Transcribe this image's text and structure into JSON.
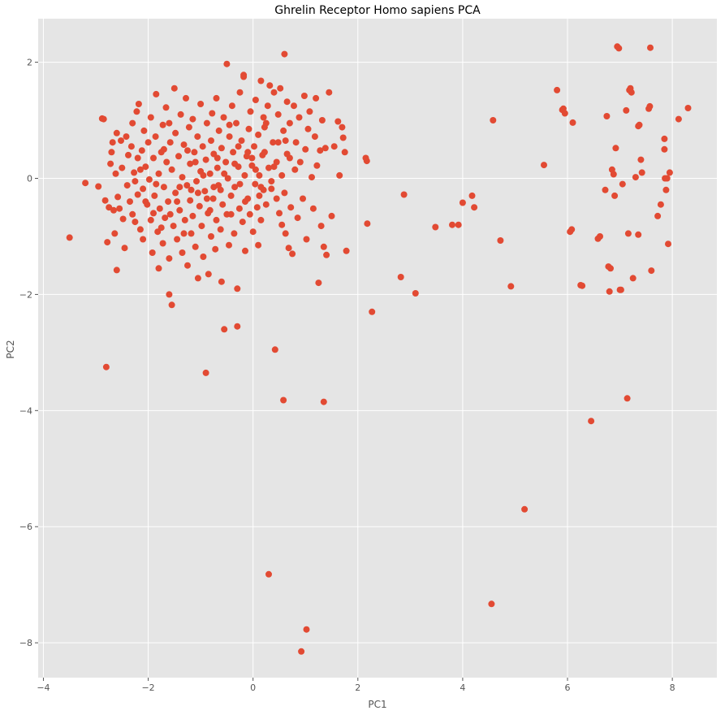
{
  "chart_data": {
    "type": "scatter",
    "title": "Ghrelin Receptor Homo sapiens PCA",
    "xlabel": "PC1",
    "ylabel": "PC2",
    "xlim": [
      -4.1,
      8.85
    ],
    "ylim": [
      -8.6,
      2.75
    ],
    "xticks": [
      -4,
      -2,
      0,
      2,
      4,
      6,
      8
    ],
    "yticks": [
      -8,
      -6,
      -4,
      -2,
      0,
      2
    ],
    "grid": true,
    "legend": "none",
    "colors": {
      "background": "#e5e5e5",
      "grid": "#ffffff",
      "points": "#e24a33"
    },
    "points": [
      [
        -3.5,
        -1.02
      ],
      [
        -3.2,
        -0.08
      ],
      [
        -2.95,
        -0.14
      ],
      [
        -2.88,
        1.03
      ],
      [
        -2.85,
        1.02
      ],
      [
        -2.82,
        -0.38
      ],
      [
        -2.8,
        -3.25
      ],
      [
        -2.78,
        -1.1
      ],
      [
        -2.75,
        -0.5
      ],
      [
        -2.72,
        0.25
      ],
      [
        -2.7,
        0.45
      ],
      [
        -2.66,
        -0.55
      ],
      [
        -2.64,
        -0.95
      ],
      [
        -2.62,
        0.08
      ],
      [
        -2.6,
        0.78
      ],
      [
        -2.6,
        -1.58
      ],
      [
        -2.58,
        -0.32
      ],
      [
        -2.55,
        -0.52
      ],
      [
        -2.52,
        0.65
      ],
      [
        -2.5,
        0.18
      ],
      [
        -2.48,
        -0.7
      ],
      [
        -2.45,
        -1.2
      ],
      [
        -2.42,
        0.72
      ],
      [
        -2.4,
        -0.12
      ],
      [
        -2.38,
        0.4
      ],
      [
        -2.35,
        -0.4
      ],
      [
        -2.32,
        0.55
      ],
      [
        -2.3,
        0.95
      ],
      [
        -2.3,
        -0.62
      ],
      [
        -2.27,
        0.1
      ],
      [
        -2.25,
        -0.75
      ],
      [
        -2.22,
        1.15
      ],
      [
        -2.2,
        -0.28
      ],
      [
        -2.2,
        0.35
      ],
      [
        -2.18,
        1.28
      ],
      [
        -2.15,
        -0.88
      ],
      [
        -2.12,
        0.48
      ],
      [
        -2.1,
        -0.18
      ],
      [
        -2.1,
        -1.05
      ],
      [
        -2.08,
        0.82
      ],
      [
        -2.05,
        0.2
      ],
      [
        -2.02,
        -0.45
      ],
      [
        -2.0,
        0.62
      ],
      [
        -1.98,
        -0.02
      ],
      [
        -1.95,
        -0.72
      ],
      [
        -1.95,
        1.05
      ],
      [
        -1.92,
        -1.28
      ],
      [
        -1.9,
        0.35
      ],
      [
        -1.88,
        -0.3
      ],
      [
        -1.86,
        0.72
      ],
      [
        -1.85,
        1.45
      ],
      [
        -1.82,
        -0.92
      ],
      [
        -1.8,
        0.08
      ],
      [
        -1.8,
        -1.55
      ],
      [
        -1.78,
        -0.52
      ],
      [
        -1.75,
        0.45
      ],
      [
        -1.72,
        0.92
      ],
      [
        -1.72,
        -1.12
      ],
      [
        -1.7,
        -0.15
      ],
      [
        -1.68,
        -0.68
      ],
      [
        -1.66,
        1.22
      ],
      [
        -1.65,
        0.28
      ],
      [
        -1.62,
        -0.4
      ],
      [
        -1.6,
        -1.38
      ],
      [
        -1.6,
        -2.0
      ],
      [
        -1.58,
        0.62
      ],
      [
        -1.55,
        -2.18
      ],
      [
        -1.55,
        0.15
      ],
      [
        -1.52,
        -0.82
      ],
      [
        -1.5,
        1.55
      ],
      [
        -1.48,
        0.78
      ],
      [
        -1.48,
        -0.25
      ],
      [
        -1.45,
        -1.05
      ],
      [
        -1.42,
        0.38
      ],
      [
        -1.4,
        -0.55
      ],
      [
        -1.38,
        1.1
      ],
      [
        -1.35,
        -1.28
      ],
      [
        -1.35,
        0.02
      ],
      [
        -1.32,
        0.58
      ],
      [
        -1.3,
        -0.72
      ],
      [
        -1.28,
        1.38
      ],
      [
        -1.26,
        -0.12
      ],
      [
        -1.25,
        -1.5
      ],
      [
        -1.22,
        0.88
      ],
      [
        -1.2,
        -0.38
      ],
      [
        -1.2,
        0.25
      ],
      [
        -1.18,
        -0.95
      ],
      [
        -1.15,
        1.02
      ],
      [
        -1.15,
        -0.65
      ],
      [
        -1.12,
        0.45
      ],
      [
        -1.1,
        -1.18
      ],
      [
        -1.08,
        -0.05
      ],
      [
        -1.06,
        0.72
      ],
      [
        -1.05,
        -1.72
      ],
      [
        -1.02,
        -0.48
      ],
      [
        -1.0,
        0.12
      ],
      [
        -1.0,
        1.28
      ],
      [
        -0.98,
        -0.82
      ],
      [
        -0.96,
        0.55
      ],
      [
        -0.95,
        -1.35
      ],
      [
        -0.92,
        -0.22
      ],
      [
        -0.9,
        0.32
      ],
      [
        -0.9,
        -3.35
      ],
      [
        -0.88,
        0.95
      ],
      [
        -0.86,
        -0.6
      ],
      [
        -0.85,
        -1.65
      ],
      [
        -0.82,
        0.08
      ],
      [
        -0.8,
        0.65
      ],
      [
        -0.8,
        -1.0
      ],
      [
        -0.78,
        1.12
      ],
      [
        -0.76,
        -0.35
      ],
      [
        -0.75,
        0.42
      ],
      [
        -0.72,
        -1.22
      ],
      [
        -0.7,
        1.38
      ],
      [
        -0.7,
        -0.72
      ],
      [
        -0.68,
        0.18
      ],
      [
        -0.66,
        -0.12
      ],
      [
        -0.65,
        0.82
      ],
      [
        -0.62,
        -0.88
      ],
      [
        -0.6,
        -1.78
      ],
      [
        -0.6,
        0.52
      ],
      [
        -0.58,
        -0.45
      ],
      [
        -0.56,
        1.05
      ],
      [
        -0.55,
        -2.6
      ],
      [
        -0.52,
        0.28
      ],
      [
        -0.5,
        1.97
      ],
      [
        -0.5,
        -0.62
      ],
      [
        -0.48,
        0.0
      ],
      [
        -0.46,
        -1.15
      ],
      [
        -0.45,
        0.72
      ],
      [
        -0.42,
        -0.3
      ],
      [
        -0.4,
        1.25
      ],
      [
        -0.38,
        0.45
      ],
      [
        -0.36,
        -0.95
      ],
      [
        -0.35,
        -0.15
      ],
      [
        -0.32,
        0.95
      ],
      [
        -0.3,
        -2.55
      ],
      [
        -0.3,
        -1.9
      ],
      [
        -0.28,
        0.2
      ],
      [
        -0.26,
        -0.52
      ],
      [
        -0.25,
        1.48
      ],
      [
        -0.22,
        0.65
      ],
      [
        -0.2,
        -0.75
      ],
      [
        -0.18,
        1.75
      ],
      [
        -0.18,
        1.78
      ],
      [
        -0.16,
        0.05
      ],
      [
        -0.15,
        -1.25
      ],
      [
        -0.12,
        0.38
      ],
      [
        -0.1,
        -0.35
      ],
      [
        -0.08,
        0.85
      ],
      [
        -0.06,
        -0.62
      ],
      [
        -0.05,
        1.15
      ],
      [
        -0.02,
        0.22
      ],
      [
        0.0,
        -0.92
      ],
      [
        0.02,
        0.55
      ],
      [
        0.04,
        -0.1
      ],
      [
        0.05,
        1.35
      ],
      [
        0.08,
        -0.5
      ],
      [
        0.1,
        0.75
      ],
      [
        0.1,
        -1.15
      ],
      [
        0.12,
        0.05
      ],
      [
        0.15,
        1.68
      ],
      [
        0.15,
        -0.72
      ],
      [
        0.18,
        0.4
      ],
      [
        0.2,
        1.05
      ],
      [
        0.2,
        -0.2
      ],
      [
        0.22,
        0.88
      ],
      [
        0.25,
        -0.45
      ],
      [
        0.28,
        1.25
      ],
      [
        0.3,
        0.18
      ],
      [
        0.3,
        -6.82
      ],
      [
        0.32,
        1.6
      ],
      [
        0.35,
        -0.05
      ],
      [
        0.38,
        0.62
      ],
      [
        0.4,
        1.48
      ],
      [
        0.42,
        -2.95
      ],
      [
        0.45,
        0.28
      ],
      [
        0.48,
        1.1
      ],
      [
        0.5,
        -0.6
      ],
      [
        0.52,
        1.55
      ],
      [
        0.55,
        0.05
      ],
      [
        0.55,
        -0.8
      ],
      [
        0.58,
        0.82
      ],
      [
        0.58,
        -3.82
      ],
      [
        0.6,
        2.14
      ],
      [
        0.62,
        -0.95
      ],
      [
        0.65,
        1.32
      ],
      [
        0.65,
        0.42
      ],
      [
        0.68,
        -1.2
      ],
      [
        0.7,
        0.95
      ],
      [
        0.72,
        -0.5
      ],
      [
        0.75,
        -1.3
      ],
      [
        0.78,
        1.25
      ],
      [
        0.8,
        0.15
      ],
      [
        0.82,
        0.62
      ],
      [
        0.85,
        -0.68
      ],
      [
        0.88,
        1.05
      ],
      [
        0.9,
        0.28
      ],
      [
        0.92,
        -8.15
      ],
      [
        0.95,
        -0.35
      ],
      [
        0.98,
        1.42
      ],
      [
        1.0,
        0.5
      ],
      [
        1.02,
        -1.05
      ],
      [
        1.02,
        -7.77
      ],
      [
        1.05,
        0.85
      ],
      [
        1.08,
        1.15
      ],
      [
        1.12,
        0.02
      ],
      [
        1.15,
        -0.52
      ],
      [
        1.18,
        0.72
      ],
      [
        1.2,
        1.38
      ],
      [
        1.22,
        0.22
      ],
      [
        1.25,
        -1.8
      ],
      [
        1.28,
        0.48
      ],
      [
        1.3,
        -0.82
      ],
      [
        1.32,
        1.0
      ],
      [
        1.35,
        -3.85
      ],
      [
        1.35,
        -1.18
      ],
      [
        1.38,
        0.52
      ],
      [
        1.4,
        -1.32
      ],
      [
        1.45,
        1.48
      ],
      [
        1.5,
        -0.65
      ],
      [
        1.55,
        0.55
      ],
      [
        1.62,
        0.98
      ],
      [
        1.65,
        0.05
      ],
      [
        1.7,
        0.88
      ],
      [
        1.72,
        0.7
      ],
      [
        1.75,
        0.45
      ],
      [
        1.78,
        -1.25
      ],
      [
        2.15,
        0.35
      ],
      [
        2.17,
        0.3
      ],
      [
        2.18,
        -0.78
      ],
      [
        2.27,
        -2.3
      ],
      [
        2.82,
        -1.7
      ],
      [
        2.88,
        -0.28
      ],
      [
        3.1,
        -1.98
      ],
      [
        3.48,
        -0.84
      ],
      [
        3.8,
        -0.8
      ],
      [
        3.92,
        -0.8
      ],
      [
        4.0,
        -0.42
      ],
      [
        4.18,
        -0.3
      ],
      [
        4.22,
        -0.5
      ],
      [
        4.55,
        -7.33
      ],
      [
        4.58,
        1.0
      ],
      [
        4.72,
        -1.07
      ],
      [
        4.92,
        -1.86
      ],
      [
        5.18,
        -5.7
      ],
      [
        5.55,
        0.23
      ],
      [
        5.8,
        1.52
      ],
      [
        5.9,
        1.18
      ],
      [
        5.92,
        1.2
      ],
      [
        5.95,
        1.12
      ],
      [
        6.05,
        -0.92
      ],
      [
        6.08,
        -0.88
      ],
      [
        6.1,
        0.96
      ],
      [
        6.25,
        -1.84
      ],
      [
        6.28,
        -1.85
      ],
      [
        6.45,
        -4.18
      ],
      [
        6.58,
        -1.04
      ],
      [
        6.62,
        -1.0
      ],
      [
        6.72,
        -0.2
      ],
      [
        6.75,
        1.07
      ],
      [
        6.78,
        -1.52
      ],
      [
        6.8,
        -1.95
      ],
      [
        6.82,
        -1.55
      ],
      [
        6.85,
        0.15
      ],
      [
        6.88,
        0.07
      ],
      [
        6.9,
        -0.3
      ],
      [
        6.92,
        0.52
      ],
      [
        6.95,
        2.27
      ],
      [
        6.98,
        2.24
      ],
      [
        7.0,
        -1.92
      ],
      [
        7.02,
        -1.92
      ],
      [
        7.05,
        -0.1
      ],
      [
        7.12,
        1.17
      ],
      [
        7.14,
        -3.79
      ],
      [
        7.16,
        -0.95
      ],
      [
        7.18,
        1.52
      ],
      [
        7.2,
        1.55
      ],
      [
        7.22,
        1.48
      ],
      [
        7.25,
        -1.72
      ],
      [
        7.3,
        0.02
      ],
      [
        7.35,
        -0.97
      ],
      [
        7.35,
        0.9
      ],
      [
        7.37,
        0.92
      ],
      [
        7.4,
        0.32
      ],
      [
        7.42,
        0.1
      ],
      [
        7.55,
        1.2
      ],
      [
        7.57,
        1.24
      ],
      [
        7.58,
        2.25
      ],
      [
        7.6,
        -1.59
      ],
      [
        7.72,
        -0.65
      ],
      [
        7.78,
        -0.45
      ],
      [
        7.85,
        0.5
      ],
      [
        7.85,
        0.68
      ],
      [
        7.86,
        0.0
      ],
      [
        7.88,
        -0.2
      ],
      [
        7.9,
        0.0
      ],
      [
        7.92,
        -1.13
      ],
      [
        7.95,
        0.1
      ],
      [
        8.12,
        1.02
      ],
      [
        8.3,
        1.21
      ],
      [
        -2.68,
        0.62
      ],
      [
        -2.25,
        -0.05
      ],
      [
        -2.05,
        -0.4
      ],
      [
        -1.9,
        -0.6
      ],
      [
        -1.75,
        -0.85
      ],
      [
        -1.6,
        0.95
      ],
      [
        -1.4,
        -0.15
      ],
      [
        -1.25,
        0.48
      ],
      [
        -1.05,
        -0.25
      ],
      [
        -0.95,
        0.05
      ],
      [
        -0.82,
        -0.55
      ],
      [
        -0.68,
        0.35
      ],
      [
        -0.55,
        0.08
      ],
      [
        -0.42,
        -0.62
      ],
      [
        -0.28,
        0.55
      ],
      [
        -0.15,
        -0.4
      ],
      [
        -0.02,
        0.35
      ],
      [
        0.12,
        -0.3
      ],
      [
        0.22,
        0.45
      ],
      [
        0.35,
        -0.18
      ],
      [
        0.48,
        0.62
      ],
      [
        0.6,
        -0.25
      ],
      [
        -1.85,
        -0.1
      ],
      [
        -1.58,
        -0.62
      ],
      [
        -1.32,
        -0.95
      ],
      [
        -1.1,
        0.28
      ],
      [
        -0.75,
        -0.15
      ],
      [
        -0.45,
        0.92
      ],
      [
        -0.25,
        -0.1
      ],
      [
        0.05,
        0.15
      ],
      [
        0.25,
        0.95
      ],
      [
        0.45,
        -0.35
      ],
      [
        0.7,
        0.35
      ],
      [
        -2.15,
        0.15
      ],
      [
        -1.7,
        0.5
      ],
      [
        -1.45,
        -0.4
      ],
      [
        -1.18,
        -0.2
      ],
      [
        -0.88,
        -0.35
      ],
      [
        -0.62,
        -0.2
      ],
      [
        -0.35,
        0.25
      ],
      [
        -0.1,
        0.45
      ],
      [
        0.15,
        -0.15
      ],
      [
        0.4,
        0.2
      ],
      [
        0.62,
        0.65
      ]
    ]
  }
}
